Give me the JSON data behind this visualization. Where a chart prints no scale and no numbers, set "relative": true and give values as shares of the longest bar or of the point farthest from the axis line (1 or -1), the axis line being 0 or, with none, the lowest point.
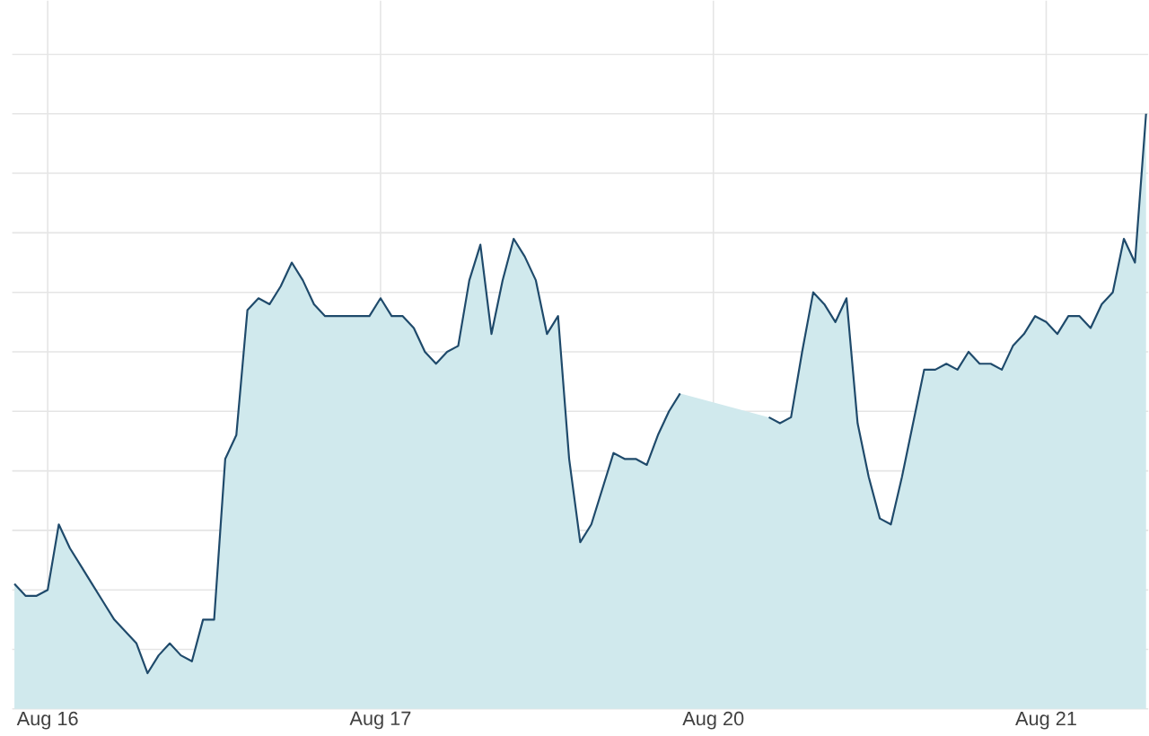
{
  "chart_data": {
    "type": "area",
    "relative": true,
    "grid": true,
    "line_style": "solid",
    "categories": [
      null,
      null,
      null,
      "Aug 16",
      null,
      null,
      null,
      null,
      null,
      null,
      null,
      null,
      null,
      null,
      null,
      null,
      null,
      null,
      null,
      null,
      null,
      null,
      null,
      null,
      null,
      null,
      null,
      null,
      null,
      null,
      null,
      null,
      null,
      "Aug 17",
      null,
      null,
      null,
      null,
      null,
      null,
      null,
      null,
      null,
      null,
      null,
      null,
      null,
      null,
      null,
      null,
      null,
      null,
      null,
      null,
      null,
      null,
      null,
      null,
      null,
      null,
      null,
      null,
      null,
      "Aug 20",
      null,
      null,
      null,
      null,
      null,
      null,
      null,
      null,
      null,
      null,
      null,
      null,
      null,
      null,
      null,
      null,
      null,
      null,
      null,
      null,
      null,
      null,
      null,
      null,
      null,
      null,
      null,
      null,
      null,
      "Aug 21",
      null,
      null,
      null,
      null,
      null,
      null,
      null,
      null,
      null
    ],
    "series": [
      {
        "color": "#1f4a6b",
        "values": [
          0.21,
          0.19,
          0.19,
          0.2,
          0.31,
          0.27,
          0.24,
          0.21,
          0.18,
          0.15,
          0.13,
          0.11,
          0.06,
          0.09,
          0.11,
          0.09,
          0.08,
          0.15,
          0.15,
          0.42,
          0.46,
          0.67,
          0.69,
          0.68,
          0.71,
          0.75,
          0.72,
          0.68,
          0.66,
          0.66,
          0.66,
          0.66,
          0.66,
          0.69,
          0.66,
          0.66,
          0.64,
          0.6,
          0.58,
          0.6,
          0.61,
          0.72,
          0.78,
          0.63,
          0.72,
          0.79,
          0.76,
          0.72,
          0.63,
          0.66,
          0.42,
          0.28,
          0.31,
          0.37,
          0.43,
          0.42,
          0.42,
          0.41,
          0.46,
          0.5,
          0.53,
          null,
          null,
          null,
          null,
          null,
          null,
          null,
          0.49,
          0.48,
          0.49,
          0.6,
          0.7,
          0.68,
          0.65,
          0.69,
          0.48,
          0.39,
          0.32,
          0.31,
          0.39,
          0.48,
          0.57,
          0.57,
          0.58,
          0.57,
          0.6,
          0.58,
          0.58,
          0.57,
          0.61,
          0.63,
          0.66,
          0.65,
          0.63,
          0.66,
          0.66,
          0.64,
          0.68,
          0.7,
          0.79,
          0.75,
          1.0
        ]
      }
    ]
  }
}
